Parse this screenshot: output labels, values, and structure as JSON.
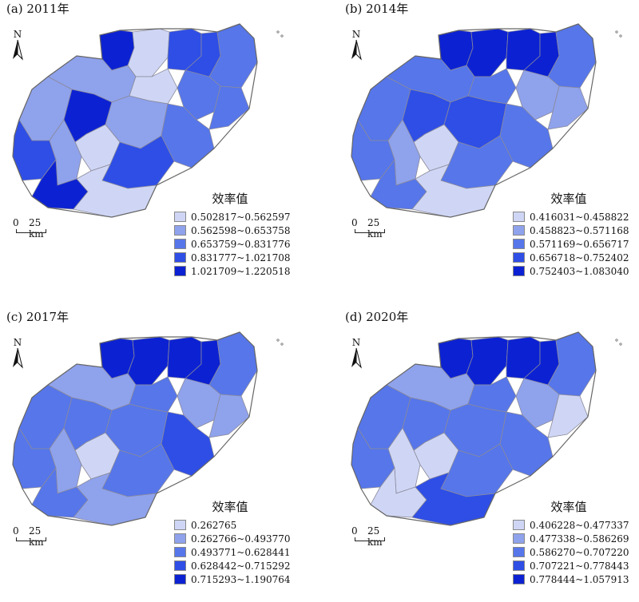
{
  "colors": [
    "#cfd6f5",
    "#8fa2ec",
    "#5676ea",
    "#2e4ee6",
    "#0c22d2"
  ],
  "legend_title": "效率值",
  "north_label": "N",
  "scale": {
    "zero": "0",
    "distance": "25 km"
  },
  "panels": [
    {
      "title": "(a) 2011年",
      "legend": [
        "0.502817~0.562597",
        "0.562598~0.653758",
        "0.653759~0.831776",
        "0.831777~1.021708",
        "1.021709~1.220518"
      ],
      "region_classes": [
        4,
        0,
        3,
        3,
        2,
        2,
        2,
        1,
        0,
        1,
        3,
        4,
        1,
        0,
        1,
        2,
        4,
        3,
        0
      ]
    },
    {
      "title": "(b) 2014年",
      "legend": [
        "0.416031~0.458822",
        "0.458823~0.571168",
        "0.571169~0.656717",
        "0.656718~0.752402",
        "0.752403~1.083040"
      ],
      "region_classes": [
        4,
        4,
        4,
        4,
        2,
        1,
        1,
        2,
        2,
        2,
        2,
        3,
        3,
        0,
        1,
        2,
        2,
        2,
        0
      ]
    },
    {
      "title": "(c) 2017年",
      "legend": [
        "0.262765",
        "0.262766~0.493770",
        "0.493771~0.628441",
        "0.628442~0.715292",
        "0.715293~1.190764"
      ],
      "region_classes": [
        4,
        4,
        4,
        4,
        2,
        1,
        1,
        1,
        2,
        2,
        2,
        2,
        2,
        0,
        1,
        3,
        2,
        2,
        1
      ]
    },
    {
      "title": "(d) 2020年",
      "legend": [
        "0.406228~0.477337",
        "0.477338~0.586269",
        "0.586270~0.707220",
        "0.707221~0.778443",
        "0.778444~1.057913"
      ],
      "region_classes": [
        4,
        4,
        4,
        4,
        2,
        1,
        0,
        1,
        2,
        2,
        2,
        2,
        2,
        0,
        0,
        2,
        0,
        2,
        3
      ]
    }
  ]
}
